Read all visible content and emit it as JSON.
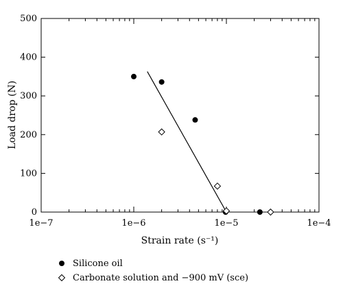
{
  "chart_data": {
    "type": "scatter",
    "xscale": "log",
    "xlim": [
      1e-07,
      0.0001
    ],
    "ylim": [
      0,
      500
    ],
    "xlabel": "Strain rate (s⁻¹)",
    "ylabel": "Load drop (N)",
    "x_ticks": [
      1e-07,
      1e-06,
      1e-05,
      0.0001
    ],
    "x_tick_labels": [
      "1e−7",
      "1e−6",
      "1e−5",
      "1e−4"
    ],
    "y_ticks": [
      0,
      100,
      200,
      300,
      400,
      500
    ],
    "y_tick_labels": [
      "0",
      "100",
      "200",
      "300",
      "400",
      "500"
    ],
    "grid": false,
    "legend_placement": "below",
    "series": [
      {
        "name": "Silicone oil",
        "marker": "filled-circle",
        "color": "#000000",
        "points": [
          {
            "x": 1e-06,
            "y": 350
          },
          {
            "x": 2e-06,
            "y": 336
          },
          {
            "x": 4.6e-06,
            "y": 238
          },
          {
            "x": 9.8e-06,
            "y": 0
          },
          {
            "x": 2.3e-05,
            "y": 0
          }
        ]
      },
      {
        "name": "Carbonate solution and −900 mV (sce)",
        "marker": "open-diamond",
        "color": "#000000",
        "points": [
          {
            "x": 2e-06,
            "y": 207
          },
          {
            "x": 8e-06,
            "y": 67
          },
          {
            "x": 1e-05,
            "y": 3
          },
          {
            "x": 3e-05,
            "y": 0
          }
        ]
      }
    ],
    "fit_line": {
      "points": [
        {
          "x": 1.4e-06,
          "y": 363
        },
        {
          "x": 1e-05,
          "y": 0
        }
      ]
    }
  }
}
